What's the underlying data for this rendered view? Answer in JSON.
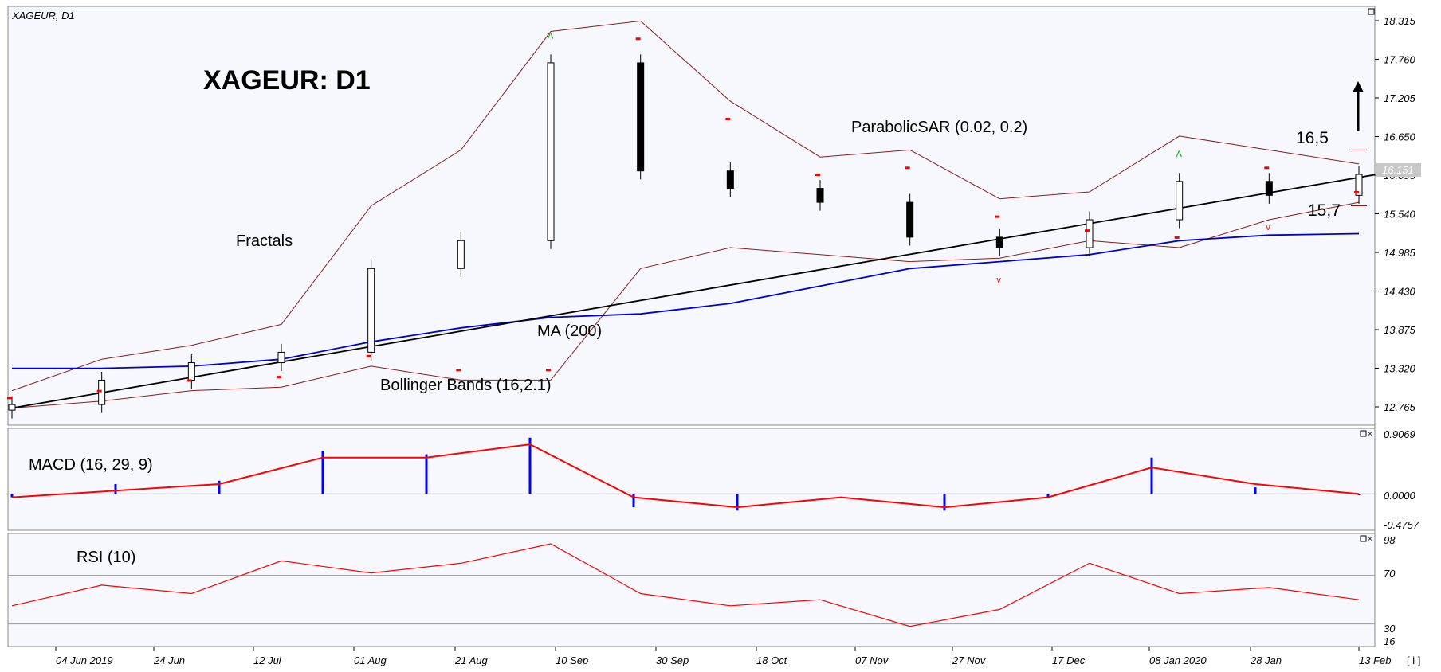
{
  "header": {
    "symbol_label": "XAGEUR, D1"
  },
  "main": {
    "title": "XAGEUR: D1",
    "annotations": {
      "parabolic_sar": "ParabolicSAR (0.02, 0.2)",
      "fractals": "Fractals",
      "ma": "MA (200)",
      "bollinger": "Bollinger Bands (16,2.1)",
      "target_high": "16,5",
      "target_low": "15,7"
    },
    "price_axis": [
      "18.315",
      "17.760",
      "17.205",
      "16.650",
      "16.095",
      "15.540",
      "14.985",
      "14.430",
      "13.875",
      "13.320",
      "12.765"
    ],
    "current_price": "16.151"
  },
  "macd_panel": {
    "label": "MACD (16, 29, 9)",
    "ticks": [
      "0.9069",
      "0.0000",
      "-0.4757"
    ]
  },
  "rsi_panel": {
    "label": "RSI (10)",
    "ticks": [
      "98",
      "70",
      "30",
      "16"
    ]
  },
  "time_axis": [
    "04 Jun 2019",
    "24 Jun",
    "12 Jul",
    "01 Aug",
    "21 Aug",
    "10 Sep",
    "30 Sep",
    "18 Oct",
    "07 Nov",
    "27 Nov",
    "17 Dec",
    "08 Jan 2020",
    "28 Jan",
    "13 Feb"
  ],
  "scroll_button": "[ i ]",
  "colors": {
    "background": "#f7f8fd",
    "up": "#ffffff",
    "down": "#000000",
    "ma": "#0000cc",
    "bands": "#8b1a1a",
    "sar": "#ff0000",
    "fractal": "#00aa00",
    "macd_signal": "#ff0000",
    "macd_hist": "#0000ff",
    "rsi": "#ff0000",
    "trend": "#000000"
  },
  "chart_data": [
    {
      "type": "candlestick",
      "title": "XAGEUR: D1",
      "ylim": [
        12.6,
        18.4
      ],
      "x": [
        "28 May",
        "04 Jun 2019",
        "24 Jun",
        "12 Jul",
        "01 Aug",
        "21 Aug",
        "03 Sep",
        "10 Sep",
        "30 Sep",
        "18 Oct",
        "07 Nov",
        "27 Nov",
        "17 Dec",
        "08 Jan 2020",
        "28 Jan",
        "06 Feb"
      ],
      "close": [
        12.85,
        13.2,
        13.45,
        13.6,
        14.8,
        15.2,
        17.75,
        16.2,
        15.95,
        15.75,
        15.25,
        15.1,
        15.5,
        16.05,
        15.85,
        16.15
      ],
      "ma200": [
        13.37,
        13.37,
        13.4,
        13.5,
        13.75,
        13.95,
        14.1,
        14.15,
        14.3,
        14.55,
        14.8,
        14.9,
        15.0,
        15.2,
        15.28,
        15.3
      ],
      "bb_upper": [
        13.05,
        13.5,
        13.7,
        14.0,
        15.7,
        16.5,
        18.2,
        18.35,
        17.2,
        16.4,
        16.5,
        15.8,
        15.9,
        16.7,
        16.5,
        16.3
      ],
      "bb_lower": [
        12.8,
        12.9,
        13.05,
        13.1,
        13.4,
        13.2,
        13.2,
        14.8,
        15.1,
        15.0,
        14.9,
        14.95,
        15.2,
        15.1,
        15.5,
        15.75
      ],
      "trend_line": {
        "from": [
          "28 May",
          12.8
        ],
        "to": [
          "06 Feb",
          16.1
        ]
      },
      "levels": {
        "16,5": 16.5,
        "15,7": 15.7
      }
    },
    {
      "type": "bar",
      "title": "MACD (16, 29, 9)",
      "ylim": [
        -0.4757,
        0.9069
      ],
      "x": [
        "28 May",
        "24 Jun",
        "12 Jul",
        "01 Aug",
        "21 Aug",
        "03 Sep",
        "30 Sep",
        "18 Oct",
        "07 Nov",
        "27 Nov",
        "17 Dec",
        "08 Jan 2020",
        "28 Jan",
        "06 Feb"
      ],
      "histogram": [
        -0.05,
        0.15,
        0.2,
        0.65,
        0.6,
        0.85,
        -0.2,
        -0.25,
        0.0,
        -0.25,
        -0.05,
        0.55,
        0.1,
        -0.02
      ],
      "signal": [
        -0.05,
        0.05,
        0.15,
        0.55,
        0.55,
        0.75,
        -0.05,
        -0.2,
        -0.05,
        -0.2,
        -0.05,
        0.4,
        0.15,
        0.0
      ]
    },
    {
      "type": "line",
      "title": "RSI (10)",
      "ylim": [
        16,
        98
      ],
      "x": [
        "28 May",
        "04 Jun 2019",
        "24 Jun",
        "12 Jul",
        "01 Aug",
        "21 Aug",
        "03 Sep",
        "10 Sep",
        "30 Sep",
        "18 Oct",
        "07 Nov",
        "27 Nov",
        "17 Dec",
        "08 Jan 2020",
        "28 Jan",
        "06 Feb"
      ],
      "values": [
        45,
        62,
        55,
        82,
        72,
        80,
        96,
        55,
        45,
        50,
        28,
        42,
        80,
        55,
        60,
        50
      ],
      "levels": [
        30,
        70
      ]
    }
  ]
}
